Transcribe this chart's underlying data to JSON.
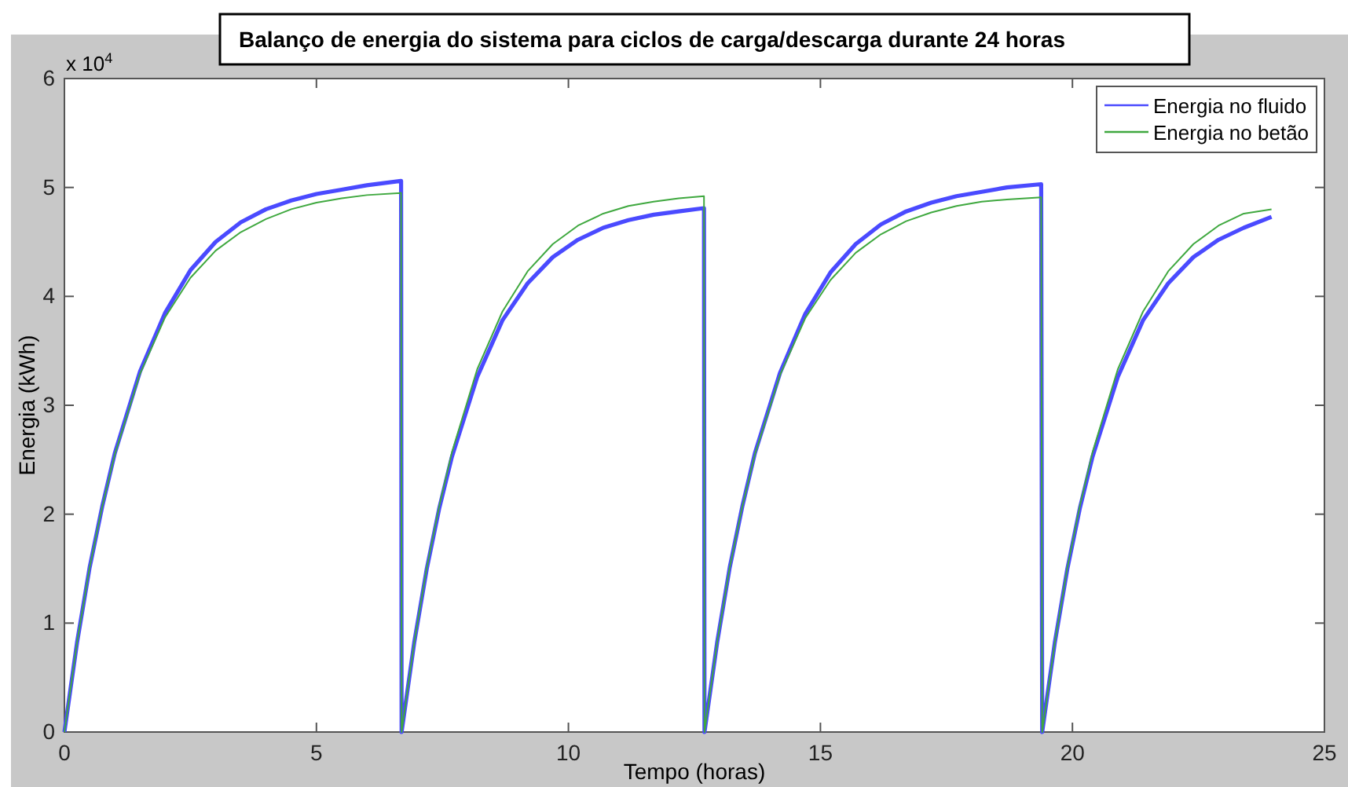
{
  "chart_data": {
    "type": "line",
    "title": "Balanço de energia do sistema para ciclos de carga/descarga durante 24 horas",
    "xlabel": "Tempo (horas)",
    "ylabel": "Energia (kWh)",
    "annotations": [
      "x 10$^{4}$"
    ],
    "x": [
      0,
      0.25,
      0.5,
      0.75,
      1,
      1.5,
      2,
      2.5,
      3,
      3.5,
      4,
      4.5,
      5,
      5.5,
      6,
      6.68,
      6.69,
      6.94,
      7.19,
      7.44,
      7.69,
      8.19,
      8.69,
      9.19,
      9.69,
      10.19,
      10.69,
      11.19,
      11.69,
      12.19,
      12.69,
      12.7,
      12.95,
      13.2,
      13.45,
      13.7,
      14.2,
      14.7,
      15.2,
      15.7,
      16.2,
      16.7,
      17.2,
      17.7,
      18.2,
      18.7,
      19.38,
      19.4,
      19.65,
      19.9,
      20.15,
      20.4,
      20.9,
      21.4,
      21.9,
      22.4,
      22.9,
      23.4,
      23.95
    ],
    "series": [
      {
        "name": "Energia no fluido",
        "color": "#4a4aff",
        "values": [
          0,
          0.82,
          1.51,
          2.07,
          2.56,
          3.31,
          3.85,
          4.24,
          4.5,
          4.68,
          4.8,
          4.88,
          4.94,
          4.98,
          5.02,
          5.06,
          0,
          0.82,
          1.5,
          2.06,
          2.53,
          3.26,
          3.78,
          4.12,
          4.36,
          4.52,
          4.63,
          4.7,
          4.75,
          4.78,
          4.81,
          0,
          0.82,
          1.51,
          2.07,
          2.56,
          3.3,
          3.84,
          4.22,
          4.48,
          4.66,
          4.78,
          4.86,
          4.92,
          4.96,
          5,
          5.03,
          0,
          0.82,
          1.5,
          2.06,
          2.53,
          3.26,
          3.78,
          4.12,
          4.36,
          4.52,
          4.63,
          4.73
        ]
      },
      {
        "name": "Energia no betão",
        "color": "#3fa83f",
        "values": [
          0,
          0.82,
          1.51,
          2.07,
          2.55,
          3.29,
          3.81,
          4.17,
          4.42,
          4.59,
          4.71,
          4.8,
          4.86,
          4.9,
          4.93,
          4.95,
          0,
          0.82,
          1.51,
          2.08,
          2.57,
          3.33,
          3.86,
          4.23,
          4.48,
          4.65,
          4.76,
          4.83,
          4.87,
          4.9,
          4.92,
          0,
          0.82,
          1.51,
          2.07,
          2.55,
          3.28,
          3.8,
          4.15,
          4.4,
          4.57,
          4.69,
          4.77,
          4.83,
          4.87,
          4.89,
          4.91,
          0,
          0.82,
          1.51,
          2.08,
          2.57,
          3.33,
          3.86,
          4.23,
          4.48,
          4.65,
          4.76,
          4.8
        ]
      }
    ],
    "xlim": [
      0,
      25
    ],
    "xticks": [
      0,
      5,
      10,
      15,
      20,
      25
    ],
    "ylim": [
      0,
      6
    ],
    "yticks": [
      0,
      1,
      2,
      3,
      4,
      5,
      6
    ],
    "legend": "top right",
    "grid": false
  }
}
